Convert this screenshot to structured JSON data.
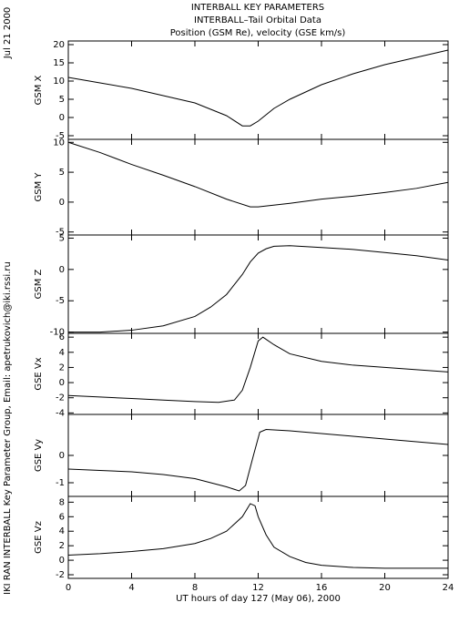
{
  "header": {
    "lines": [
      "INTERBALL KEY PARAMETERS",
      "INTERBALL–Tail Orbital Data",
      "Position (GSM Re), velocity (GSE km/s)"
    ]
  },
  "side": {
    "date": "Jul 21 2000",
    "credit": "IKI RAN INTERBALL Key Parameter Group, Email: apetrukovich@iki.rssi.ru"
  },
  "chart_data": [
    {
      "type": "line",
      "ylabel": "GSM X",
      "xlim": [
        0,
        24
      ],
      "ylim": [
        -6,
        21
      ],
      "yticks": [
        -5,
        0,
        5,
        10,
        15,
        20
      ],
      "x": [
        0,
        2,
        4,
        6,
        8,
        10,
        11,
        11.5,
        12,
        13,
        14,
        16,
        18,
        20,
        22,
        24
      ],
      "values": [
        11,
        9.5,
        8,
        6,
        4,
        0.5,
        -2.3,
        -2.3,
        -1,
        2.5,
        5,
        9,
        12,
        14.5,
        16.5,
        18.5
      ]
    },
    {
      "type": "line",
      "ylabel": "GSM Y",
      "xlim": [
        0,
        24
      ],
      "ylim": [
        -5.5,
        10.5
      ],
      "yticks": [
        -5,
        0,
        5,
        10
      ],
      "x": [
        0,
        2,
        4,
        6,
        8,
        10,
        11.5,
        12,
        14,
        16,
        18,
        20,
        22,
        24
      ],
      "values": [
        10,
        8.3,
        6.3,
        4.5,
        2.6,
        0.5,
        -0.8,
        -0.8,
        -0.2,
        0.5,
        1,
        1.6,
        2.3,
        3.3
      ]
    },
    {
      "type": "line",
      "ylabel": "GSM Z",
      "xlim": [
        0,
        24
      ],
      "ylim": [
        -10.2,
        5.5
      ],
      "yticks": [
        -10,
        -5,
        0,
        5
      ],
      "x": [
        0,
        2,
        4,
        6,
        8,
        9,
        10,
        11,
        11.5,
        12,
        12.5,
        13,
        14,
        16,
        18,
        20,
        22,
        24
      ],
      "values": [
        -10,
        -10,
        -9.7,
        -9,
        -7.5,
        -6,
        -4,
        -0.8,
        1.2,
        2.6,
        3.3,
        3.7,
        3.8,
        3.5,
        3.2,
        2.7,
        2.2,
        1.5
      ]
    },
    {
      "type": "line",
      "ylabel": "GSE Vx",
      "xlim": [
        0,
        24
      ],
      "ylim": [
        -4.2,
        6.5
      ],
      "yticks": [
        -4,
        -2,
        0,
        2,
        4,
        6
      ],
      "x": [
        0,
        2,
        4,
        6,
        8,
        9.5,
        10.5,
        11,
        11.5,
        12,
        12.3,
        13,
        14,
        16,
        18,
        20,
        22,
        24
      ],
      "values": [
        -1.7,
        -1.9,
        -2.1,
        -2.3,
        -2.5,
        -2.6,
        -2.3,
        -1,
        2,
        5.5,
        6,
        5,
        3.8,
        2.8,
        2.3,
        2,
        1.7,
        1.4
      ]
    },
    {
      "type": "line",
      "ylabel": "GSE Vy",
      "xlim": [
        0,
        24
      ],
      "ylim": [
        -1.5,
        1.5
      ],
      "yticks": [
        -1,
        0
      ],
      "x": [
        0,
        2,
        4,
        6,
        8,
        10,
        10.8,
        11.2,
        11.7,
        12.1,
        12.5,
        14,
        16,
        18,
        20,
        22,
        24
      ],
      "values": [
        -0.5,
        -0.55,
        -0.6,
        -0.7,
        -0.85,
        -1.15,
        -1.3,
        -1.1,
        0,
        0.85,
        0.95,
        0.9,
        0.8,
        0.7,
        0.6,
        0.5,
        0.4
      ]
    },
    {
      "type": "line",
      "ylabel": "GSE Vz",
      "xlim": [
        0,
        24
      ],
      "ylim": [
        -2.5,
        8.8
      ],
      "yticks": [
        -2,
        0,
        2,
        4,
        6,
        8
      ],
      "xticks": [
        0,
        4,
        8,
        12,
        16,
        20,
        24
      ],
      "xlabel": "UT hours of day 127 (May 06), 2000",
      "x": [
        0,
        2,
        4,
        6,
        8,
        9,
        10,
        11,
        11.5,
        11.8,
        12,
        12.5,
        13,
        14,
        15,
        16,
        18,
        20,
        22,
        24
      ],
      "values": [
        0.7,
        0.9,
        1.2,
        1.6,
        2.3,
        3,
        4,
        6,
        7.8,
        7.5,
        6,
        3.5,
        1.8,
        0.5,
        -0.3,
        -0.7,
        -1,
        -1.1,
        -1.1,
        -1.1
      ]
    }
  ]
}
